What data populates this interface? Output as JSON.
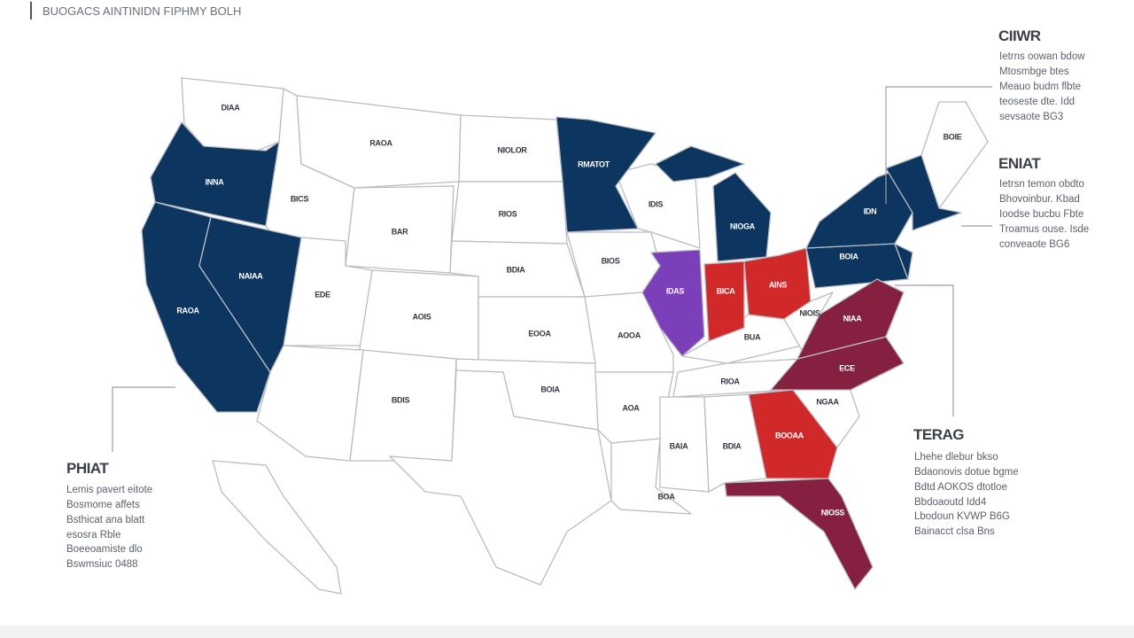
{
  "header": {
    "title": "BUOGACS AINTINIDN FIPHMY BOLH"
  },
  "callouts": [
    {
      "title": "CIIWR",
      "lines": [
        "Ietrns oowan bdow",
        "Mtosmbge btes",
        "Meauo budm flbte",
        "teoseste dte. Idd",
        "sevsaote BG3"
      ]
    },
    {
      "title": "ENIAT",
      "lines": [
        "Ietrsn temon obdto",
        "Bhovoinbur. Kbad",
        "Ioodse bucbu Fbte",
        "Troamus ouse. Isde",
        "conveaote BG6"
      ]
    },
    {
      "title": "TERAG",
      "lines": [
        "Lhehe dlebur bkso",
        "Bdaonovis dotue bgme",
        "Bdtd AOKOS dtotloe",
        "Bbdoaoutd Idd4",
        "Lbodoun KVWP B6G",
        "Bainacct clsa Bns"
      ]
    },
    {
      "title": "PHIAT",
      "lines": [
        "Lemis pavert eitote",
        "Bosmome affets",
        "Bsthicat ana blatt",
        "esosra Rble",
        "Boeeoamiste dlo",
        "Bswmsiuc 0488"
      ]
    }
  ],
  "states": [
    {
      "label": "DIAA"
    },
    {
      "label": "INNA"
    },
    {
      "label": "BICS"
    },
    {
      "label": "RAOA"
    },
    {
      "label": "EDE"
    },
    {
      "label": "NAIAA"
    },
    {
      "label": "RAOA"
    },
    {
      "label": "NIOLOR"
    },
    {
      "label": "RIOS"
    },
    {
      "label": "BAR"
    },
    {
      "label": "RMATOT"
    },
    {
      "label": "IDIS"
    },
    {
      "label": "NIOGA"
    },
    {
      "label": "BDIA"
    },
    {
      "label": "AOIS"
    },
    {
      "label": "BIOS"
    },
    {
      "label": "EOOA"
    },
    {
      "label": "AOOA"
    },
    {
      "label": "IDAS"
    },
    {
      "label": "BICA"
    },
    {
      "label": "AINS"
    },
    {
      "label": "NIOIS"
    },
    {
      "label": "BUA"
    },
    {
      "label": "NIAA"
    },
    {
      "label": "RIOA"
    },
    {
      "label": "ECE"
    },
    {
      "label": "NGAA"
    },
    {
      "label": "BOOAA"
    },
    {
      "label": "NIOSS"
    },
    {
      "label": "BAIA"
    },
    {
      "label": "BDIA"
    },
    {
      "label": "BOA"
    },
    {
      "label": "AOA"
    },
    {
      "label": "BOIA"
    },
    {
      "label": "IDN"
    },
    {
      "label": "BOIA"
    },
    {
      "label": "BDIS"
    },
    {
      "label": "BOIE"
    }
  ]
}
